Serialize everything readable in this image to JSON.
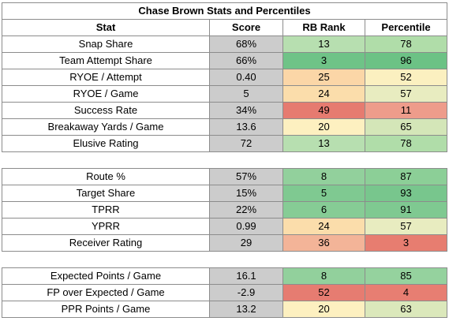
{
  "title": "Chase Brown Stats and Percentiles",
  "headers": [
    "Stat",
    "Score",
    "RB Rank",
    "Percentile"
  ],
  "groups": [
    [
      {
        "stat": "Snap Share",
        "score": "68%",
        "rank": "13",
        "pct": "78",
        "rank_color": "#b7dfb0",
        "pct_color": "#b0dda9"
      },
      {
        "stat": "Team Attempt Share",
        "score": "66%",
        "rank": "3",
        "pct": "96",
        "rank_color": "#6fc387",
        "pct_color": "#6cc285"
      },
      {
        "stat": "RYOE / Attempt",
        "score": "0.40",
        "rank": "25",
        "pct": "52",
        "rank_color": "#fbd6a7",
        "pct_color": "#fbf0c0"
      },
      {
        "stat": "RYOE / Game",
        "score": "5",
        "rank": "24",
        "pct": "57",
        "rank_color": "#fbddab",
        "pct_color": "#e8ecc0"
      },
      {
        "stat": "Success Rate",
        "score": "34%",
        "rank": "49",
        "pct": "11",
        "rank_color": "#e67b70",
        "pct_color": "#ee9c8b"
      },
      {
        "stat": "Breakaway Yards / Game",
        "score": "13.6",
        "rank": "20",
        "pct": "65",
        "rank_color": "#fdf0c0",
        "pct_color": "#d4e6b8"
      },
      {
        "stat": "Elusive Rating",
        "score": "72",
        "rank": "13",
        "pct": "78",
        "rank_color": "#b7dfb0",
        "pct_color": "#b0dda9"
      }
    ],
    [
      {
        "stat": "Route %",
        "score": "57%",
        "rank": "8",
        "pct": "87",
        "rank_color": "#92d09c",
        "pct_color": "#8ccf97"
      },
      {
        "stat": "Target Share",
        "score": "15%",
        "rank": "5",
        "pct": "93",
        "rank_color": "#7fc991",
        "pct_color": "#78c68d"
      },
      {
        "stat": "TPRR",
        "score": "22%",
        "rank": "6",
        "pct": "91",
        "rank_color": "#86cc95",
        "pct_color": "#7fc991"
      },
      {
        "stat": "YPRR",
        "score": "0.99",
        "rank": "24",
        "pct": "57",
        "rank_color": "#fbddab",
        "pct_color": "#e8ecc0"
      },
      {
        "stat": "Receiver Rating",
        "score": "29",
        "rank": "36",
        "pct": "3",
        "rank_color": "#f3b498",
        "pct_color": "#e77d70"
      }
    ],
    [
      {
        "stat": "Expected Points / Game",
        "score": "16.1",
        "rank": "8",
        "pct": "85",
        "rank_color": "#92d09c",
        "pct_color": "#95d29e"
      },
      {
        "stat": "FP over Expected / Game",
        "score": "-2.9",
        "rank": "52",
        "pct": "4",
        "rank_color": "#e67c71",
        "pct_color": "#e77e72"
      },
      {
        "stat": "PPR Points / Game",
        "score": "13.2",
        "rank": "20",
        "pct": "63",
        "rank_color": "#fdf0c0",
        "pct_color": "#dbe8bb"
      }
    ]
  ]
}
